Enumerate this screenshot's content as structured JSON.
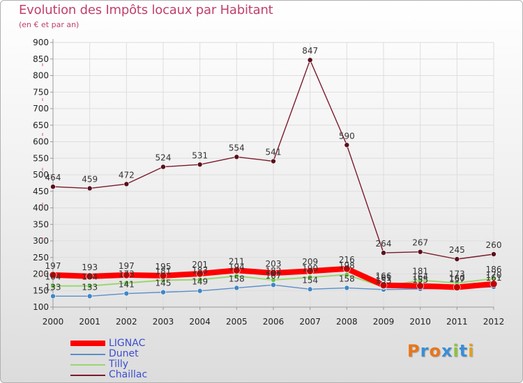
{
  "colors": {
    "title": "#c0406a",
    "grid": "#dddddd",
    "axis": "#999999",
    "legend_text": "#3a4fd0"
  },
  "brand": {
    "letters": [
      "P",
      "r",
      "o",
      "x",
      "i",
      "t",
      "i"
    ],
    "colors": [
      "#e8761a",
      "#3a8ed6",
      "#e8761a",
      "#3a8ed6",
      "#8cc43c",
      "#3a8ed6",
      "#e0a020"
    ]
  },
  "chart_data": {
    "type": "line",
    "title": "Evolution des Impôts locaux par Habitant",
    "subtitle": "(en € et par an)",
    "xlabel": "",
    "ylabel": "",
    "ylim": [
      100,
      900
    ],
    "ytick_step": 50,
    "categories": [
      "2000",
      "2001",
      "2002",
      "2003",
      "2004",
      "2005",
      "2006",
      "2007",
      "2008",
      "2009",
      "2010",
      "2011",
      "2012"
    ],
    "series": [
      {
        "name": "Chaillac",
        "color": "#7a1a2a",
        "marker": "#5a0f1c",
        "width": 1.4,
        "values": [
          464,
          459,
          472,
          524,
          531,
          554,
          541,
          847,
          590,
          264,
          267,
          245,
          260
        ],
        "show_labels": true
      },
      {
        "name": "Dunet",
        "color": "#5b8ec9",
        "marker": "#3f86c8",
        "width": 1.4,
        "values": [
          133,
          133,
          141,
          145,
          149,
          158,
          167,
          154,
          158,
          153,
          155,
          157,
          161
        ],
        "show_labels": true
      },
      {
        "name": "Tilly",
        "color": "#9ad670",
        "marker": "#6cc24a",
        "width": 2,
        "values": [
          164,
          164,
          173,
          181,
          183,
          194,
          182,
          190,
          198,
          161,
          181,
          173,
          186
        ],
        "show_labels": true
      },
      {
        "name": "LIGNAC",
        "color": "#ff0000",
        "marker": "#c40000",
        "width": 8,
        "values": [
          197,
          193,
          197,
          195,
          201,
          211,
          203,
          209,
          216,
          166,
          164,
          160,
          170
        ],
        "show_labels": true
      }
    ],
    "legend": [
      "LIGNAC",
      "Dunet",
      "Tilly",
      "Chaillac"
    ],
    "legend_position": "bottom-left"
  }
}
